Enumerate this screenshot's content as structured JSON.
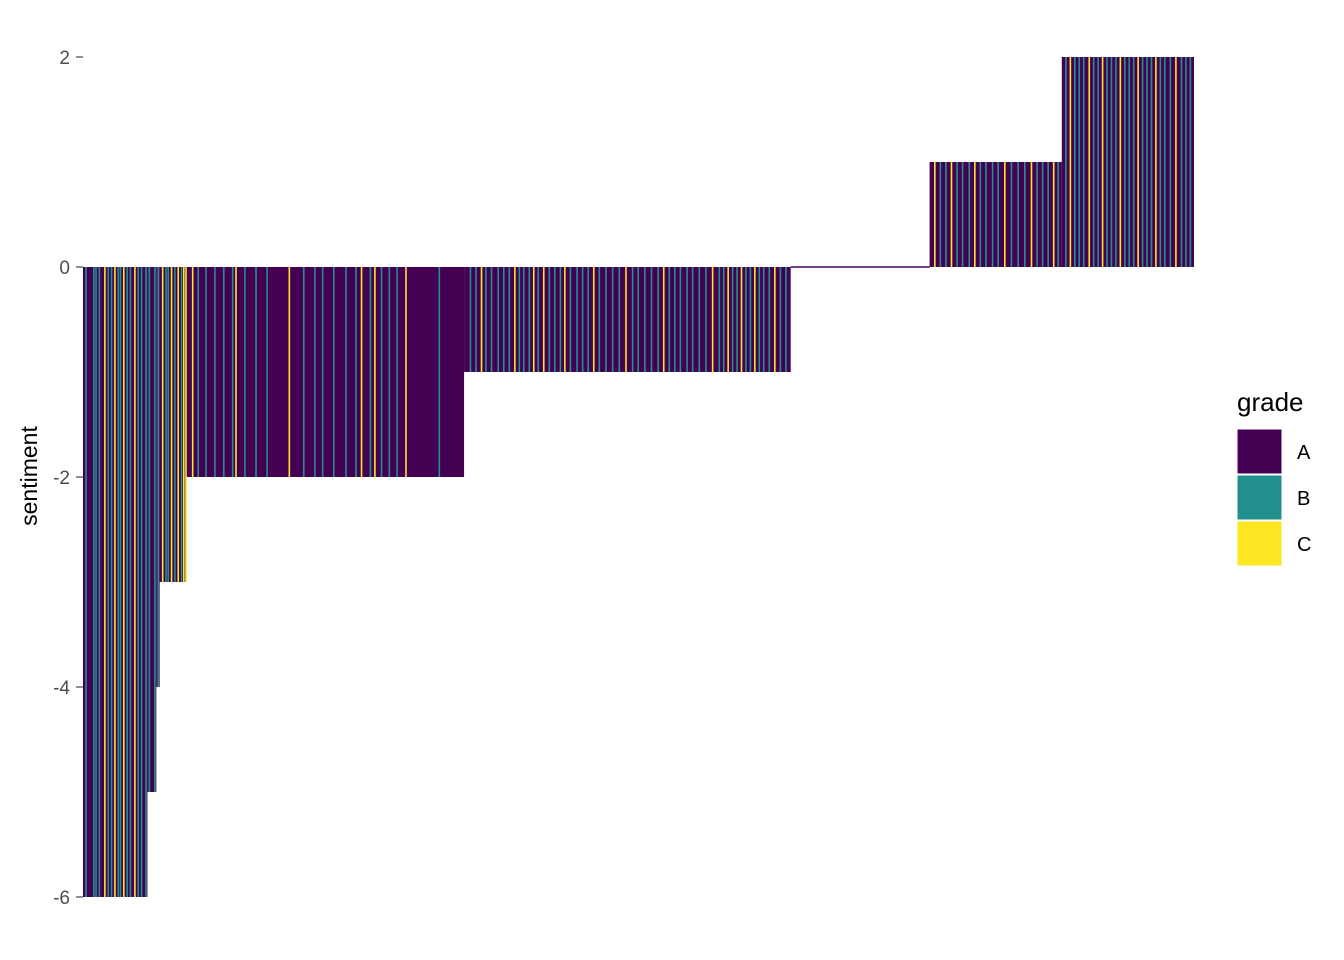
{
  "chart_data": {
    "type": "bar",
    "ylabel": "sentiment",
    "xlabel": "",
    "ylim": [
      -6,
      2
    ],
    "y_ticks": [
      {
        "value": 2,
        "label": "2"
      },
      {
        "value": 0,
        "label": "0"
      },
      {
        "value": -2,
        "label": "-2"
      },
      {
        "value": -4,
        "label": "-4"
      },
      {
        "value": -6,
        "label": "-6"
      }
    ],
    "grid": false,
    "legend": {
      "title": "grade",
      "placement": "right",
      "entries": [
        {
          "label": "A",
          "color": "#440154"
        },
        {
          "label": "B",
          "color": "#21908C"
        },
        {
          "label": "C",
          "color": "#FDE725"
        }
      ]
    },
    "x_count": 1000,
    "segments": [
      {
        "x_start": 0,
        "x_end": 58,
        "value": -6
      },
      {
        "x_start": 58,
        "x_end": 66,
        "value": -5
      },
      {
        "x_start": 66,
        "x_end": 69,
        "value": -4
      },
      {
        "x_start": 69,
        "x_end": 93,
        "value": -3
      },
      {
        "x_start": 93,
        "x_end": 343,
        "value": -2
      },
      {
        "x_start": 343,
        "x_end": 637,
        "value": -1
      },
      {
        "x_start": 637,
        "x_end": 762,
        "value": 0
      },
      {
        "x_start": 762,
        "x_end": 881,
        "value": 1
      },
      {
        "x_start": 881,
        "x_end": 1000,
        "value": 2
      }
    ],
    "highlight_bars": [
      {
        "x": 2,
        "grade": "B"
      },
      {
        "x": 6,
        "grade": "A"
      },
      {
        "x": 9,
        "grade": "B"
      },
      {
        "x": 11,
        "grade": "B"
      },
      {
        "x": 14,
        "grade": "B"
      },
      {
        "x": 19,
        "grade": "C"
      },
      {
        "x": 22,
        "grade": "B"
      },
      {
        "x": 25,
        "grade": "B"
      },
      {
        "x": 28,
        "grade": "C"
      },
      {
        "x": 31,
        "grade": "B"
      },
      {
        "x": 33,
        "grade": "B"
      },
      {
        "x": 36,
        "grade": "C"
      },
      {
        "x": 39,
        "grade": "B"
      },
      {
        "x": 42,
        "grade": "B"
      },
      {
        "x": 46,
        "grade": "C"
      },
      {
        "x": 49,
        "grade": "B"
      },
      {
        "x": 52,
        "grade": "B"
      },
      {
        "x": 56,
        "grade": "B"
      },
      {
        "x": 59,
        "grade": "B"
      },
      {
        "x": 64,
        "grade": "B"
      },
      {
        "x": 67,
        "grade": "B"
      },
      {
        "x": 71,
        "grade": "C"
      },
      {
        "x": 74,
        "grade": "B"
      },
      {
        "x": 76,
        "grade": "B"
      },
      {
        "x": 79,
        "grade": "C"
      },
      {
        "x": 82,
        "grade": "B"
      },
      {
        "x": 85,
        "grade": "C"
      },
      {
        "x": 88,
        "grade": "B"
      },
      {
        "x": 90,
        "grade": "C"
      },
      {
        "x": 92,
        "grade": "C"
      },
      {
        "x": 98,
        "grade": "C"
      },
      {
        "x": 103,
        "grade": "B"
      },
      {
        "x": 110,
        "grade": "B"
      },
      {
        "x": 118,
        "grade": "B"
      },
      {
        "x": 126,
        "grade": "B"
      },
      {
        "x": 134,
        "grade": "B"
      },
      {
        "x": 137,
        "grade": "C"
      },
      {
        "x": 145,
        "grade": "B"
      },
      {
        "x": 155,
        "grade": "B"
      },
      {
        "x": 165,
        "grade": "B"
      },
      {
        "x": 185,
        "grade": "C"
      },
      {
        "x": 198,
        "grade": "B"
      },
      {
        "x": 208,
        "grade": "B"
      },
      {
        "x": 215,
        "grade": "B"
      },
      {
        "x": 225,
        "grade": "B"
      },
      {
        "x": 236,
        "grade": "B"
      },
      {
        "x": 245,
        "grade": "B"
      },
      {
        "x": 250,
        "grade": "C"
      },
      {
        "x": 258,
        "grade": "B"
      },
      {
        "x": 262,
        "grade": "C"
      },
      {
        "x": 268,
        "grade": "B"
      },
      {
        "x": 275,
        "grade": "B"
      },
      {
        "x": 282,
        "grade": "B"
      },
      {
        "x": 290,
        "grade": "C"
      },
      {
        "x": 320,
        "grade": "B"
      },
      {
        "x": 348,
        "grade": "B"
      },
      {
        "x": 353,
        "grade": "B"
      },
      {
        "x": 358,
        "grade": "C"
      },
      {
        "x": 362,
        "grade": "B"
      },
      {
        "x": 367,
        "grade": "B"
      },
      {
        "x": 373,
        "grade": "B"
      },
      {
        "x": 378,
        "grade": "B"
      },
      {
        "x": 383,
        "grade": "B"
      },
      {
        "x": 388,
        "grade": "C"
      },
      {
        "x": 392,
        "grade": "B"
      },
      {
        "x": 396,
        "grade": "B"
      },
      {
        "x": 401,
        "grade": "B"
      },
      {
        "x": 405,
        "grade": "C"
      },
      {
        "x": 409,
        "grade": "B"
      },
      {
        "x": 414,
        "grade": "C"
      },
      {
        "x": 419,
        "grade": "B"
      },
      {
        "x": 424,
        "grade": "B"
      },
      {
        "x": 429,
        "grade": "B"
      },
      {
        "x": 433,
        "grade": "C"
      },
      {
        "x": 438,
        "grade": "B"
      },
      {
        "x": 444,
        "grade": "B"
      },
      {
        "x": 449,
        "grade": "B"
      },
      {
        "x": 454,
        "grade": "B"
      },
      {
        "x": 459,
        "grade": "C"
      },
      {
        "x": 464,
        "grade": "B"
      },
      {
        "x": 470,
        "grade": "B"
      },
      {
        "x": 476,
        "grade": "B"
      },
      {
        "x": 482,
        "grade": "B"
      },
      {
        "x": 488,
        "grade": "C"
      },
      {
        "x": 494,
        "grade": "B"
      },
      {
        "x": 499,
        "grade": "B"
      },
      {
        "x": 505,
        "grade": "B"
      },
      {
        "x": 511,
        "grade": "B"
      },
      {
        "x": 517,
        "grade": "B"
      },
      {
        "x": 522,
        "grade": "C"
      },
      {
        "x": 527,
        "grade": "B"
      },
      {
        "x": 532,
        "grade": "B"
      },
      {
        "x": 537,
        "grade": "B"
      },
      {
        "x": 543,
        "grade": "B"
      },
      {
        "x": 548,
        "grade": "B"
      },
      {
        "x": 554,
        "grade": "B"
      },
      {
        "x": 560,
        "grade": "B"
      },
      {
        "x": 566,
        "grade": "C"
      },
      {
        "x": 572,
        "grade": "B"
      },
      {
        "x": 576,
        "grade": "B"
      },
      {
        "x": 580,
        "grade": "C"
      },
      {
        "x": 584,
        "grade": "B"
      },
      {
        "x": 588,
        "grade": "B"
      },
      {
        "x": 592,
        "grade": "C"
      },
      {
        "x": 596,
        "grade": "B"
      },
      {
        "x": 600,
        "grade": "B"
      },
      {
        "x": 604,
        "grade": "C"
      },
      {
        "x": 608,
        "grade": "B"
      },
      {
        "x": 612,
        "grade": "B"
      },
      {
        "x": 617,
        "grade": "B"
      },
      {
        "x": 622,
        "grade": "C"
      },
      {
        "x": 627,
        "grade": "B"
      },
      {
        "x": 632,
        "grade": "B"
      },
      {
        "x": 766,
        "grade": "C"
      },
      {
        "x": 771,
        "grade": "B"
      },
      {
        "x": 776,
        "grade": "B"
      },
      {
        "x": 781,
        "grade": "C"
      },
      {
        "x": 786,
        "grade": "B"
      },
      {
        "x": 791,
        "grade": "B"
      },
      {
        "x": 797,
        "grade": "B"
      },
      {
        "x": 802,
        "grade": "C"
      },
      {
        "x": 807,
        "grade": "B"
      },
      {
        "x": 812,
        "grade": "B"
      },
      {
        "x": 818,
        "grade": "B"
      },
      {
        "x": 823,
        "grade": "B"
      },
      {
        "x": 829,
        "grade": "C"
      },
      {
        "x": 835,
        "grade": "B"
      },
      {
        "x": 841,
        "grade": "B"
      },
      {
        "x": 847,
        "grade": "B"
      },
      {
        "x": 853,
        "grade": "C"
      },
      {
        "x": 858,
        "grade": "B"
      },
      {
        "x": 863,
        "grade": "B"
      },
      {
        "x": 868,
        "grade": "B"
      },
      {
        "x": 873,
        "grade": "C"
      },
      {
        "x": 877,
        "grade": "B"
      },
      {
        "x": 884,
        "grade": "B"
      },
      {
        "x": 888,
        "grade": "C"
      },
      {
        "x": 892,
        "grade": "B"
      },
      {
        "x": 896,
        "grade": "B"
      },
      {
        "x": 900,
        "grade": "B"
      },
      {
        "x": 905,
        "grade": "C"
      },
      {
        "x": 909,
        "grade": "B"
      },
      {
        "x": 913,
        "grade": "B"
      },
      {
        "x": 917,
        "grade": "C"
      },
      {
        "x": 921,
        "grade": "B"
      },
      {
        "x": 925,
        "grade": "B"
      },
      {
        "x": 929,
        "grade": "B"
      },
      {
        "x": 933,
        "grade": "C"
      },
      {
        "x": 937,
        "grade": "B"
      },
      {
        "x": 941,
        "grade": "B"
      },
      {
        "x": 945,
        "grade": "B"
      },
      {
        "x": 949,
        "grade": "C"
      },
      {
        "x": 953,
        "grade": "B"
      },
      {
        "x": 957,
        "grade": "B"
      },
      {
        "x": 961,
        "grade": "B"
      },
      {
        "x": 965,
        "grade": "C"
      },
      {
        "x": 969,
        "grade": "B"
      },
      {
        "x": 973,
        "grade": "B"
      },
      {
        "x": 978,
        "grade": "B"
      },
      {
        "x": 983,
        "grade": "C"
      },
      {
        "x": 988,
        "grade": "B"
      },
      {
        "x": 992,
        "grade": "B"
      },
      {
        "x": 996,
        "grade": "B"
      }
    ]
  }
}
